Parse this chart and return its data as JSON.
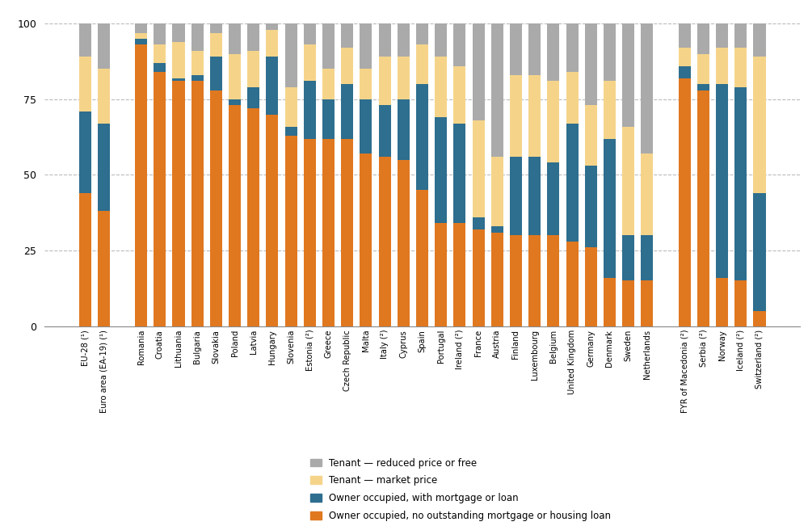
{
  "categories": [
    "EU-28 (¹)",
    "Euro area (EA-19) (¹)",
    "",
    "Romania",
    "Croatia",
    "Lithuania",
    "Bulgaria",
    "Slovakia",
    "Poland",
    "Latvia",
    "Hungary",
    "Slovenia",
    "Estonia (²)",
    "Greece",
    "Czech Republic",
    "Malta",
    "Italy (²)",
    "Cyprus",
    "Spain",
    "Portugal",
    "Ireland (²)",
    "France",
    "Austria",
    "Finland",
    "Luxembourg",
    "Belgium",
    "United Kingdom",
    "Germany",
    "Denmark",
    "Sweden",
    "Netherlands",
    "",
    "FYR of Macedonia (²)",
    "Serbia (²)",
    "Norway",
    "Iceland (²)",
    "Switzerland (²)"
  ],
  "owner_no_mortgage": [
    44,
    38,
    0,
    93,
    84,
    81,
    81,
    78,
    73,
    72,
    70,
    63,
    62,
    62,
    62,
    57,
    56,
    55,
    45,
    34,
    34,
    32,
    31,
    30,
    30,
    30,
    28,
    26,
    16,
    15,
    15,
    0,
    82,
    78,
    16,
    15,
    5
  ],
  "owner_with_mortgage": [
    27,
    29,
    0,
    2,
    3,
    1,
    2,
    11,
    2,
    7,
    19,
    3,
    19,
    13,
    18,
    18,
    17,
    20,
    35,
    35,
    33,
    4,
    2,
    26,
    26,
    24,
    39,
    27,
    46,
    15,
    15,
    0,
    4,
    2,
    64,
    64,
    39
  ],
  "tenant_market": [
    18,
    18,
    0,
    2,
    6,
    12,
    8,
    8,
    15,
    12,
    9,
    13,
    12,
    10,
    12,
    10,
    16,
    14,
    13,
    20,
    19,
    32,
    23,
    27,
    27,
    27,
    17,
    20,
    19,
    36,
    27,
    0,
    6,
    10,
    12,
    13,
    45
  ],
  "tenant_reduced": [
    11,
    15,
    0,
    3,
    7,
    6,
    9,
    3,
    10,
    9,
    2,
    21,
    7,
    15,
    8,
    15,
    11,
    11,
    7,
    11,
    14,
    32,
    44,
    17,
    17,
    19,
    16,
    27,
    19,
    34,
    43,
    0,
    8,
    10,
    8,
    8,
    11
  ],
  "colors": {
    "owner_no_mortgage": "#E07820",
    "owner_with_mortgage": "#2E6E8E",
    "tenant_market": "#F5D48A",
    "tenant_reduced": "#AAAAAA"
  },
  "ylim": [
    0,
    100
  ],
  "yticks": [
    0,
    25,
    50,
    75,
    100
  ],
  "legend_labels": [
    "Tenant — reduced price or free",
    "Tenant — market price",
    "Owner occupied, with mortgage or loan",
    "Owner occupied, no outstanding mortgage or housing loan"
  ],
  "background_color": "#ffffff",
  "bar_width": 0.65
}
